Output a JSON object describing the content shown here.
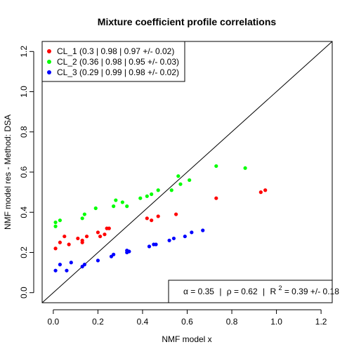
{
  "chart_data": {
    "type": "scatter",
    "title": "Mixture coefficient profile correlations",
    "xlabel": "NMF model x",
    "ylabel": "NMF model res - Method: DSA",
    "xlim": [
      -0.05,
      1.25
    ],
    "ylim": [
      -0.05,
      1.25
    ],
    "xticks": [
      "0.0",
      "0.2",
      "0.4",
      "0.6",
      "0.8",
      "1.0",
      "1.2"
    ],
    "yticks": [
      "0.0",
      "0.2",
      "0.4",
      "0.6",
      "0.8",
      "1.0",
      "1.2"
    ],
    "grid": false,
    "legend_position": "top-left",
    "diagonal": true,
    "stats": {
      "alpha_label": "α = 0.35",
      "rho_label": "ρ = 0.62",
      "r2_label": "R",
      "r2_sup": "2",
      "r2_value": " = 0.39 +/- 0.18",
      "sep": "|"
    },
    "series": [
      {
        "name": "CL_1 (0.3 | 0.98 | 0.97 +/- 0.02)",
        "color": "#ff0000",
        "points": [
          [
            0.01,
            0.22
          ],
          [
            0.03,
            0.25
          ],
          [
            0.05,
            0.28
          ],
          [
            0.07,
            0.24
          ],
          [
            0.11,
            0.27
          ],
          [
            0.13,
            0.26
          ],
          [
            0.13,
            0.25
          ],
          [
            0.15,
            0.28
          ],
          [
            0.2,
            0.3
          ],
          [
            0.21,
            0.28
          ],
          [
            0.23,
            0.29
          ],
          [
            0.24,
            0.32
          ],
          [
            0.25,
            0.32
          ],
          [
            0.42,
            0.37
          ],
          [
            0.44,
            0.36
          ],
          [
            0.47,
            0.38
          ],
          [
            0.55,
            0.39
          ],
          [
            0.73,
            0.47
          ],
          [
            0.93,
            0.5
          ],
          [
            0.95,
            0.51
          ]
        ]
      },
      {
        "name": "CL_2 (0.36 | 0.98 | 0.95 +/- 0.03)",
        "color": "#00ff00",
        "points": [
          [
            0.01,
            0.33
          ],
          [
            0.01,
            0.35
          ],
          [
            0.03,
            0.36
          ],
          [
            0.13,
            0.37
          ],
          [
            0.14,
            0.39
          ],
          [
            0.19,
            0.42
          ],
          [
            0.27,
            0.43
          ],
          [
            0.28,
            0.46
          ],
          [
            0.31,
            0.45
          ],
          [
            0.33,
            0.43
          ],
          [
            0.39,
            0.47
          ],
          [
            0.42,
            0.48
          ],
          [
            0.44,
            0.49
          ],
          [
            0.47,
            0.51
          ],
          [
            0.53,
            0.51
          ],
          [
            0.56,
            0.58
          ],
          [
            0.57,
            0.54
          ],
          [
            0.61,
            0.56
          ],
          [
            0.73,
            0.63
          ],
          [
            0.86,
            0.62
          ]
        ]
      },
      {
        "name": "CL_3 (0.29 | 0.99 | 0.98 +/- 0.02)",
        "color": "#0000ff",
        "points": [
          [
            0.01,
            0.11
          ],
          [
            0.03,
            0.14
          ],
          [
            0.06,
            0.11
          ],
          [
            0.08,
            0.15
          ],
          [
            0.13,
            0.13
          ],
          [
            0.14,
            0.14
          ],
          [
            0.2,
            0.16
          ],
          [
            0.26,
            0.18
          ],
          [
            0.27,
            0.19
          ],
          [
            0.33,
            0.2
          ],
          [
            0.33,
            0.21
          ],
          [
            0.43,
            0.23
          ],
          [
            0.45,
            0.24
          ],
          [
            0.46,
            0.24
          ],
          [
            0.52,
            0.26
          ],
          [
            0.54,
            0.27
          ],
          [
            0.59,
            0.28
          ],
          [
            0.62,
            0.3
          ],
          [
            0.67,
            0.31
          ],
          [
            0.34,
            0.205
          ]
        ]
      }
    ]
  }
}
